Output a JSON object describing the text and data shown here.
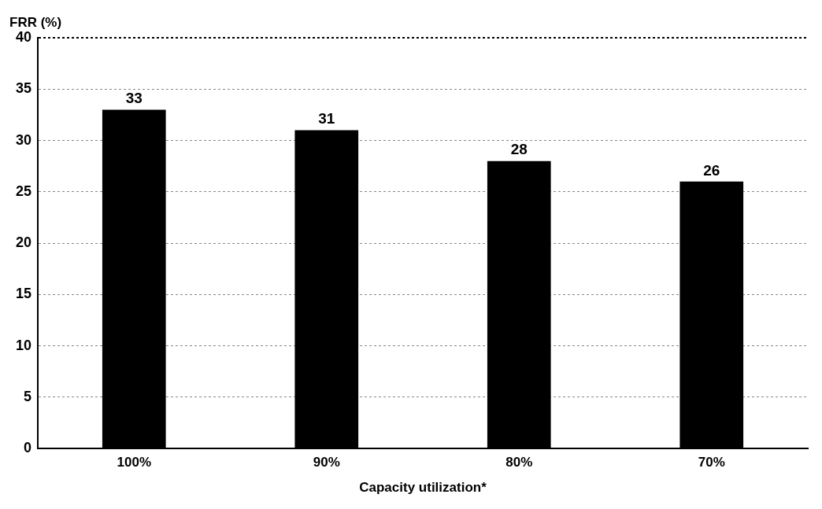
{
  "chart_data": {
    "type": "bar",
    "ylabel": "FRR (%)",
    "xlabel": "Capacity utilization*",
    "categories": [
      "100%",
      "90%",
      "80%",
      "70%"
    ],
    "values": [
      33,
      31,
      28,
      26
    ],
    "color": "#000000",
    "ylim": [
      0,
      40
    ],
    "yticks": [
      0,
      5,
      10,
      15,
      20,
      25,
      30,
      35,
      40
    ],
    "grid": "y",
    "data_labels": true
  }
}
